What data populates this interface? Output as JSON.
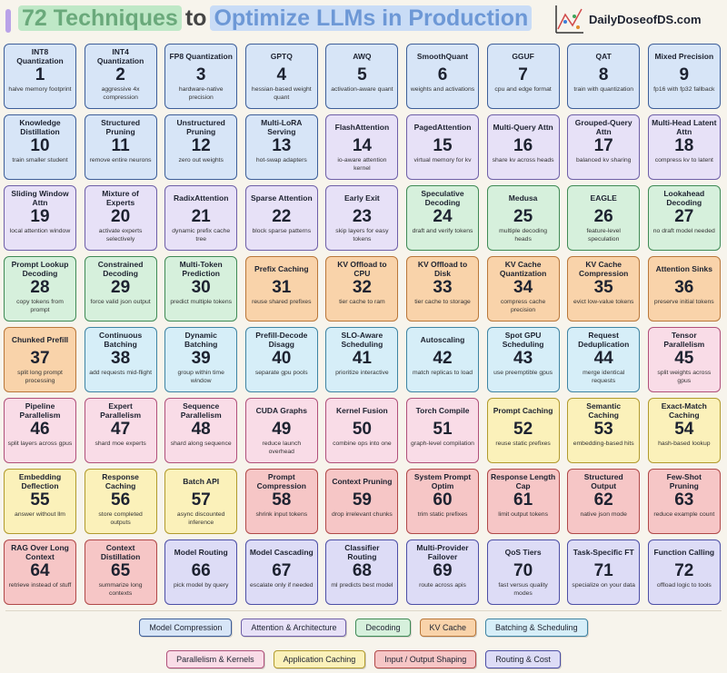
{
  "header": {
    "title_highlight": "72 Techniques",
    "title_join": "to",
    "title_rest": "Optimize LLMs in Production",
    "brand": "DailyDoseofDS.com"
  },
  "legend": [
    {
      "name": "Model Compression",
      "fill": "#d7e5f7",
      "border": "#3d5e99"
    },
    {
      "name": "Attention & Architecture",
      "fill": "#e7e1f7",
      "border": "#6e5fa8"
    },
    {
      "name": "Decoding",
      "fill": "#d6f0dc",
      "border": "#3f8a55"
    },
    {
      "name": "KV Cache",
      "fill": "#f9d3aa",
      "border": "#b9773a"
    },
    {
      "name": "Batching & Scheduling",
      "fill": "#d6eef8",
      "border": "#3e84a3"
    },
    {
      "name": "Parallelism & Kernels",
      "fill": "#f9dce7",
      "border": "#b0507a"
    },
    {
      "name": "Application Caching",
      "fill": "#fbf1ba",
      "border": "#b19a2d"
    },
    {
      "name": "Input / Output Shaping",
      "fill": "#f6c6c6",
      "border": "#b04848"
    },
    {
      "name": "Routing & Cost",
      "fill": "#dddcf6",
      "border": "#4c4ea6"
    }
  ],
  "cards": [
    {
      "title": "INT8 Quantization",
      "number": 1,
      "desc": "halve memory footprint",
      "category": 0
    },
    {
      "title": "INT4 Quantization",
      "number": 2,
      "desc": "aggressive 4x compression",
      "category": 0
    },
    {
      "title": "FP8 Quantization",
      "number": 3,
      "desc": "hardware-native precision",
      "category": 0
    },
    {
      "title": "GPTQ",
      "number": 4,
      "desc": "hessian-based weight quant",
      "category": 0
    },
    {
      "title": "AWQ",
      "number": 5,
      "desc": "activation-aware quant",
      "category": 0
    },
    {
      "title": "SmoothQuant",
      "number": 6,
      "desc": "weights and activations",
      "category": 0
    },
    {
      "title": "GGUF",
      "number": 7,
      "desc": "cpu and edge format",
      "category": 0
    },
    {
      "title": "QAT",
      "number": 8,
      "desc": "train with quantization",
      "category": 0
    },
    {
      "title": "Mixed Precision",
      "number": 9,
      "desc": "fp16 with fp32 fallback",
      "category": 0
    },
    {
      "title": "Knowledge Distillation",
      "number": 10,
      "desc": "train smaller student",
      "category": 0
    },
    {
      "title": "Structured Pruning",
      "number": 11,
      "desc": "remove entire neurons",
      "category": 0
    },
    {
      "title": "Unstructured Pruning",
      "number": 12,
      "desc": "zero out weights",
      "category": 0
    },
    {
      "title": "Multi-LoRA Serving",
      "number": 13,
      "desc": "hot-swap adapters",
      "category": 0
    },
    {
      "title": "FlashAttention",
      "number": 14,
      "desc": "io-aware attention kernel",
      "category": 1
    },
    {
      "title": "PagedAttention",
      "number": 15,
      "desc": "virtual memory for kv",
      "category": 1
    },
    {
      "title": "Multi-Query Attn",
      "number": 16,
      "desc": "share kv across heads",
      "category": 1
    },
    {
      "title": "Grouped-Query Attn",
      "number": 17,
      "desc": "balanced kv sharing",
      "category": 1
    },
    {
      "title": "Multi-Head Latent Attn",
      "number": 18,
      "desc": "compress kv to latent",
      "category": 1
    },
    {
      "title": "Sliding Window Attn",
      "number": 19,
      "desc": "local attention window",
      "category": 1
    },
    {
      "title": "Mixture of Experts",
      "number": 20,
      "desc": "activate experts selectively",
      "category": 1
    },
    {
      "title": "RadixAttention",
      "number": 21,
      "desc": "dynamic prefix cache tree",
      "category": 1
    },
    {
      "title": "Sparse Attention",
      "number": 22,
      "desc": "block sparse patterns",
      "category": 1
    },
    {
      "title": "Early Exit",
      "number": 23,
      "desc": "skip layers for easy tokens",
      "category": 1
    },
    {
      "title": "Speculative Decoding",
      "number": 24,
      "desc": "draft and verify tokens",
      "category": 2
    },
    {
      "title": "Medusa",
      "number": 25,
      "desc": "multiple decoding heads",
      "category": 2
    },
    {
      "title": "EAGLE",
      "number": 26,
      "desc": "feature-level speculation",
      "category": 2
    },
    {
      "title": "Lookahead Decoding",
      "number": 27,
      "desc": "no draft model needed",
      "category": 2
    },
    {
      "title": "Prompt Lookup Decoding",
      "number": 28,
      "desc": "copy tokens from prompt",
      "category": 2
    },
    {
      "title": "Constrained Decoding",
      "number": 29,
      "desc": "force valid json output",
      "category": 2
    },
    {
      "title": "Multi-Token Prediction",
      "number": 30,
      "desc": "predict multiple tokens",
      "category": 2
    },
    {
      "title": "Prefix Caching",
      "number": 31,
      "desc": "reuse shared prefixes",
      "category": 3
    },
    {
      "title": "KV Offload to CPU",
      "number": 32,
      "desc": "tier cache to ram",
      "category": 3
    },
    {
      "title": "KV Offload to Disk",
      "number": 33,
      "desc": "tier cache to storage",
      "category": 3
    },
    {
      "title": "KV Cache Quantization",
      "number": 34,
      "desc": "compress cache precision",
      "category": 3
    },
    {
      "title": "KV Cache Compression",
      "number": 35,
      "desc": "evict low-value tokens",
      "category": 3
    },
    {
      "title": "Attention Sinks",
      "number": 36,
      "desc": "preserve initial tokens",
      "category": 3
    },
    {
      "title": "Chunked Prefill",
      "number": 37,
      "desc": "split long prompt processing",
      "category": 3
    },
    {
      "title": "Continuous Batching",
      "number": 38,
      "desc": "add requests mid-flight",
      "category": 4
    },
    {
      "title": "Dynamic Batching",
      "number": 39,
      "desc": "group within time window",
      "category": 4
    },
    {
      "title": "Prefill-Decode Disagg",
      "number": 40,
      "desc": "separate gpu pools",
      "category": 4
    },
    {
      "title": "SLO-Aware Scheduling",
      "number": 41,
      "desc": "prioritize interactive",
      "category": 4
    },
    {
      "title": "Autoscaling",
      "number": 42,
      "desc": "match replicas to load",
      "category": 4
    },
    {
      "title": "Spot GPU Scheduling",
      "number": 43,
      "desc": "use preemptible gpus",
      "category": 4
    },
    {
      "title": "Request Deduplication",
      "number": 44,
      "desc": "merge identical requests",
      "category": 4
    },
    {
      "title": "Tensor Parallelism",
      "number": 45,
      "desc": "split weights across gpus",
      "category": 5
    },
    {
      "title": "Pipeline Parallelism",
      "number": 46,
      "desc": "split layers across gpus",
      "category": 5
    },
    {
      "title": "Expert Parallelism",
      "number": 47,
      "desc": "shard moe experts",
      "category": 5
    },
    {
      "title": "Sequence Parallelism",
      "number": 48,
      "desc": "shard along sequence",
      "category": 5
    },
    {
      "title": "CUDA Graphs",
      "number": 49,
      "desc": "reduce launch overhead",
      "category": 5
    },
    {
      "title": "Kernel Fusion",
      "number": 50,
      "desc": "combine ops into one",
      "category": 5
    },
    {
      "title": "Torch Compile",
      "number": 51,
      "desc": "graph-level compilation",
      "category": 5
    },
    {
      "title": "Prompt Caching",
      "number": 52,
      "desc": "reuse static prefixes",
      "category": 6
    },
    {
      "title": "Semantic Caching",
      "number": 53,
      "desc": "embedding-based hits",
      "category": 6
    },
    {
      "title": "Exact-Match Caching",
      "number": 54,
      "desc": "hash-based lookup",
      "category": 6
    },
    {
      "title": "Embedding Deflection",
      "number": 55,
      "desc": "answer without llm",
      "category": 6
    },
    {
      "title": "Response Caching",
      "number": 56,
      "desc": "store completed outputs",
      "category": 6
    },
    {
      "title": "Batch API",
      "number": 57,
      "desc": "async discounted inference",
      "category": 6
    },
    {
      "title": "Prompt Compression",
      "number": 58,
      "desc": "shrink input tokens",
      "category": 7
    },
    {
      "title": "Context Pruning",
      "number": 59,
      "desc": "drop irrelevant chunks",
      "category": 7
    },
    {
      "title": "System Prompt Optim",
      "number": 60,
      "desc": "trim static prefixes",
      "category": 7
    },
    {
      "title": "Response Length Cap",
      "number": 61,
      "desc": "limit output tokens",
      "category": 7
    },
    {
      "title": "Structured Output",
      "number": 62,
      "desc": "native json mode",
      "category": 7
    },
    {
      "title": "Few-Shot Pruning",
      "number": 63,
      "desc": "reduce example count",
      "category": 7
    },
    {
      "title": "RAG Over Long Context",
      "number": 64,
      "desc": "retrieve instead of stuff",
      "category": 7
    },
    {
      "title": "Context Distillation",
      "number": 65,
      "desc": "summarize long contexts",
      "category": 7
    },
    {
      "title": "Model Routing",
      "number": 66,
      "desc": "pick model by query",
      "category": 8
    },
    {
      "title": "Model Cascading",
      "number": 67,
      "desc": "escalate only if needed",
      "category": 8
    },
    {
      "title": "Classifier Routing",
      "number": 68,
      "desc": "ml predicts best model",
      "category": 8
    },
    {
      "title": "Multi-Provider Failover",
      "number": 69,
      "desc": "route across apis",
      "category": 8
    },
    {
      "title": "QoS Tiers",
      "number": 70,
      "desc": "fast versus quality modes",
      "category": 8
    },
    {
      "title": "Task-Specific FT",
      "number": 71,
      "desc": "specialize on your data",
      "category": 8
    },
    {
      "title": "Function Calling",
      "number": 72,
      "desc": "offload logic to tools",
      "category": 8
    }
  ]
}
